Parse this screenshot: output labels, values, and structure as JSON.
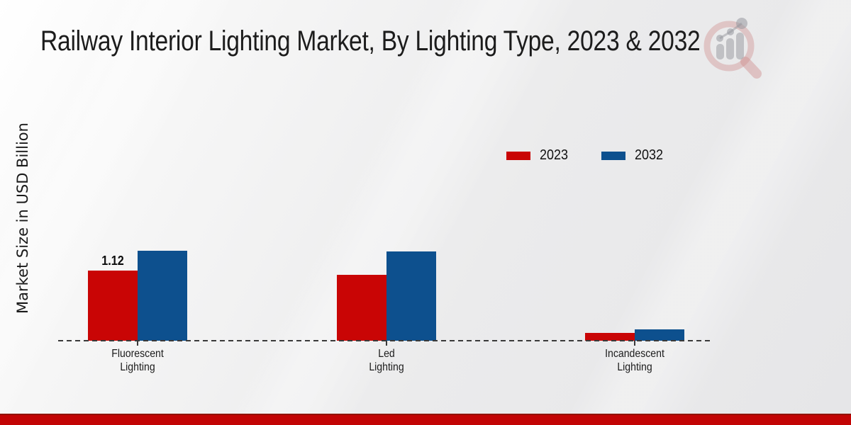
{
  "header": {
    "title": "Railway Interior Lighting Market, By Lighting Type, 2023 & 2032"
  },
  "chart_data": {
    "type": "bar",
    "title": "Railway Interior Lighting Market, By Lighting Type, 2023 & 2032",
    "ylabel": "Market Size in USD Billion",
    "xlabel": "",
    "categories": [
      "Fluorescent Lighting",
      "Led Lighting",
      "Incandescent Lighting"
    ],
    "series": [
      {
        "name": "2023",
        "color": "#c90505",
        "values": [
          1.12,
          1.06,
          0.13
        ]
      },
      {
        "name": "2032",
        "color": "#0d508e",
        "values": [
          1.44,
          1.43,
          0.18
        ]
      }
    ],
    "data_labels": [
      {
        "series": "2023",
        "category": "Fluorescent Lighting",
        "text": "1.12"
      }
    ],
    "ylim": [
      0,
      1.6
    ],
    "grid": false,
    "legend_position": "upper-right",
    "baseline_style": "dashed-zero-line",
    "baseline_color": "#3a3a3a"
  },
  "watermark": {
    "icon": "magnifier-bar-chart-logo"
  },
  "footer": {
    "accent_color": "#c20404",
    "accent_top_line": "#911307"
  }
}
